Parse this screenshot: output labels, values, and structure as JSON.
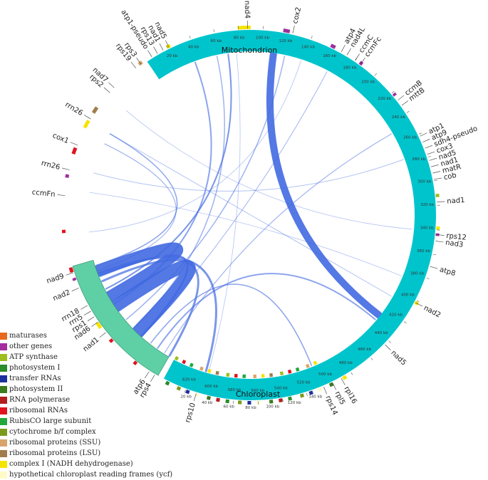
{
  "diagram": {
    "mito_label": "Mitochondrion",
    "chloro_label": "Chloroplast",
    "mito_ticks": [
      "20 kb",
      "40 kb",
      "60 kb",
      "80 kb",
      "100 kb",
      "120 kb",
      "140 kb",
      "160 kb",
      "180 kb",
      "200 kb",
      "220 kb",
      "240 kb",
      "260 kb",
      "280 kb",
      "300 kb",
      "320 kb",
      "340 kb",
      "360 kb",
      "380 kb",
      "400 kb",
      "420 kb",
      "440 kb",
      "460 kb",
      "480 kb",
      "500 kb",
      "520 kb",
      "540 kb",
      "560 kb",
      "580 kb",
      "600 kb",
      "620 kb"
    ],
    "chloro_ticks": [
      "20 kb",
      "40 kb",
      "60 kb",
      "80 kb",
      "100 kb",
      "120 kb",
      "140 kb"
    ],
    "mito_genes": [
      "nad4",
      "cox2",
      "atp4",
      "nad4L",
      "ccmC",
      "ccmFc",
      "ccmB",
      "mttB",
      "atp1",
      "atp9",
      "sdh4-pseudo",
      "cox3",
      "nad5",
      "nad1",
      "matR",
      "cob",
      "nad1",
      "rps12",
      "nad3",
      "atp8",
      "nad2",
      "nad5",
      "rpl16",
      "rpl5",
      "rps14",
      "rps10",
      "rps4",
      "atp6",
      "nad1",
      "nad6",
      "rps1",
      "rrn5",
      "rrn18",
      "nad2",
      "nad9",
      "ccmFn",
      "rrn26",
      "cox1",
      "rrn26",
      "rps2",
      "nad7",
      "rps19",
      "rps3",
      "atp1-pseudo",
      "rps13",
      "nad1",
      "nad5"
    ],
    "feature_colors": {
      "mito_band": "#00c4cc",
      "chloro_band": "#5fcfa6",
      "links": "#4169e1"
    }
  },
  "legend": [
    {
      "label": "maturases",
      "color": "#e8691d"
    },
    {
      "label": "other genes",
      "color": "#a32ca0"
    },
    {
      "label": "ATP synthase",
      "color": "#9dbe1e"
    },
    {
      "label": "photosystem I",
      "color": "#2a8c2a"
    },
    {
      "label": "transfer RNAs",
      "color": "#1c2f9c"
    },
    {
      "label": "photosystem II",
      "color": "#3c7a1e"
    },
    {
      "label": "RNA polymerase",
      "color": "#b21e1e"
    },
    {
      "label": "ribosomal RNAs",
      "color": "#e0141e"
    },
    {
      "label": "RubisCO large subunit",
      "color": "#22a83a"
    },
    {
      "label": "cytochrome b/f complex",
      "color": "#7a9a1a"
    },
    {
      "label": "ribosomal proteins (SSU)",
      "color": "#d9a46a"
    },
    {
      "label": "ribosomal proteins (LSU)",
      "color": "#a07d4a"
    },
    {
      "label": "complex I (NADH dehydrogenase)",
      "color": "#f5e400"
    },
    {
      "label": "hypothetical chloroplast reading frames (ycf)",
      "color": "#fffbc8"
    }
  ]
}
